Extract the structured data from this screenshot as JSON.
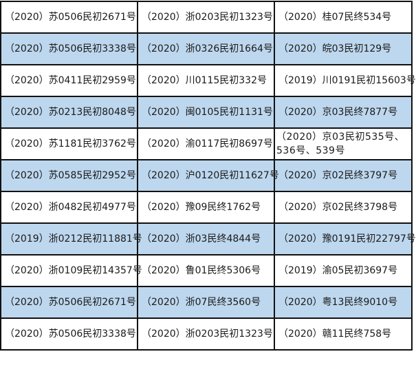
{
  "colors": {
    "stripe": "#bdd7ee",
    "border": "#111111"
  },
  "rows": [
    [
      "（2020）苏0506民初2671号",
      "（2020）浙0203民初1323号",
      "（2020）桂07民终534号"
    ],
    [
      "（2020）苏0506民初3338号",
      "（2020）浙0326民初1664号",
      "（2020）皖03民初129号"
    ],
    [
      "（2020）苏0411民初2959号",
      "（2020）川0115民初332号",
      "（2019）川0191民初15603号"
    ],
    [
      "（2020）苏0213民初8048号",
      "（2020）闽0105民初1131号",
      "（2020）京03民终7877号"
    ],
    [
      "（2020）苏1181民初3762号",
      "（2020）渝0117民初8697号",
      "（2020）京03民初535号、536号、539号"
    ],
    [
      "（2020）苏0585民初2952号",
      "（2020）沪0120民初11627号",
      "（2020）京02民终3797号"
    ],
    [
      "（2020）浙0482民初4977号",
      "（2020）豫09民终1762号",
      "（2020）京02民终3798号"
    ],
    [
      "（2019）浙0212民初11881号",
      "（2020）浙03民终4844号",
      "（2020）豫0191民初22797号"
    ],
    [
      "（2020）浙0109民初14357号",
      "（2020）鲁01民终5306号",
      "（2019）渝05民初3697号"
    ],
    [
      "（2020）苏0506民初2671号",
      "（2020）浙07民终3560号",
      "（2020）粤13民终9010号"
    ],
    [
      "（2020）苏0506民初3338号",
      "（2020）浙0203民初1323号",
      "（2020）赣11民终758号"
    ]
  ]
}
